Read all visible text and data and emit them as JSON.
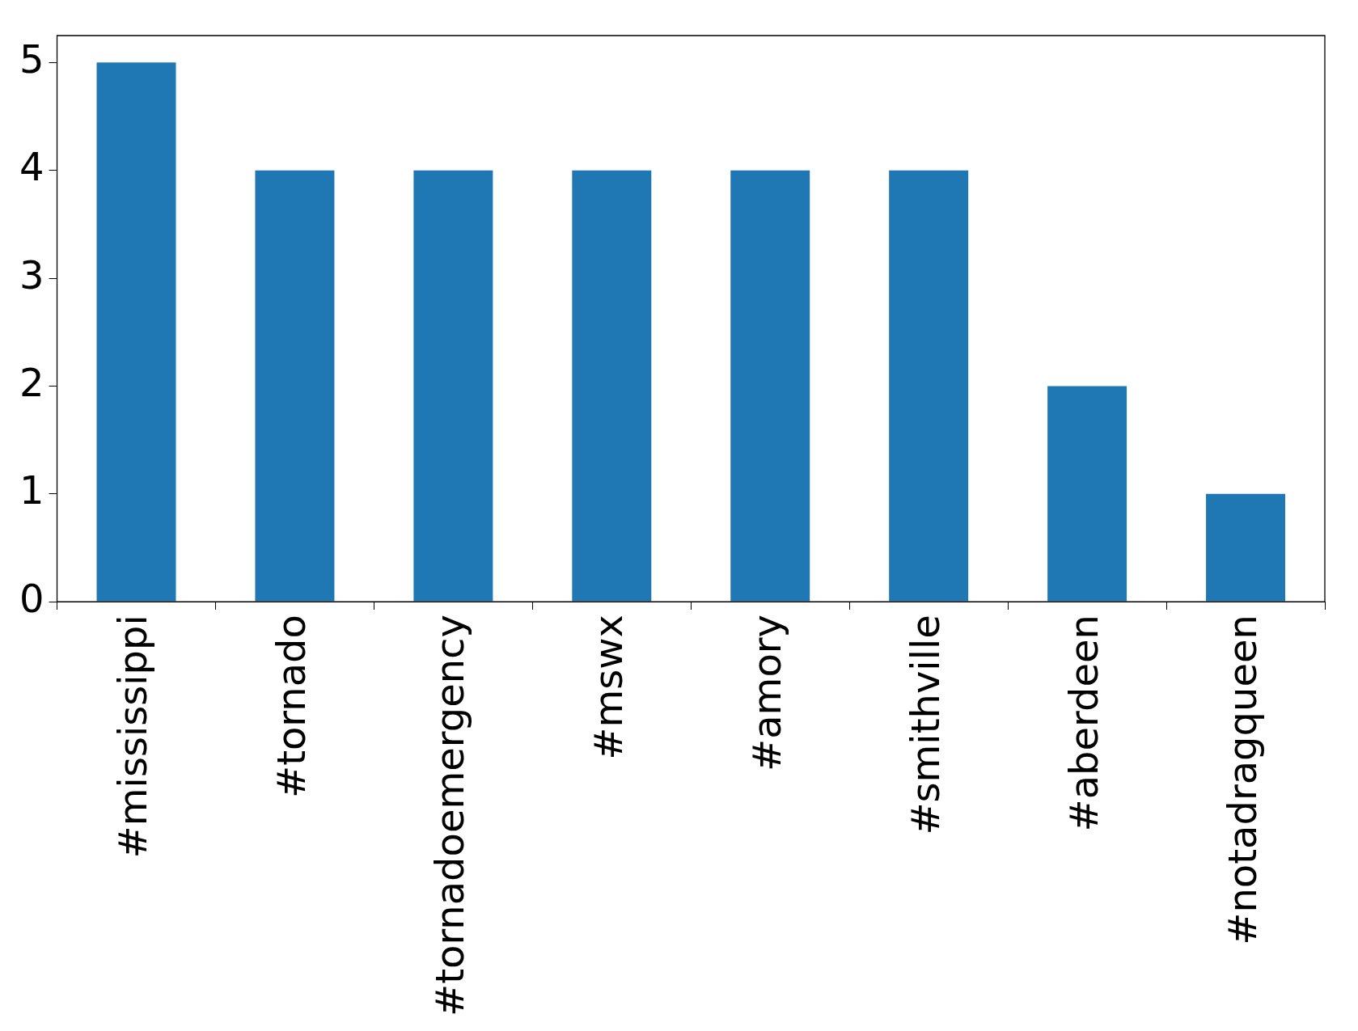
{
  "chart_data": {
    "type": "bar",
    "categories": [
      "#mississippi",
      "#tornado",
      "#tornadoemergency",
      "#mswx",
      "#amory",
      "#smithville",
      "#aberdeen",
      "#notadragqueen"
    ],
    "values": [
      5,
      4,
      4,
      4,
      4,
      4,
      2,
      1
    ],
    "color": "#1f77b4",
    "ylim": [
      0,
      5.25
    ],
    "yticks": [
      0,
      1,
      2,
      3,
      4,
      5
    ],
    "grid": false,
    "legend": false
  }
}
